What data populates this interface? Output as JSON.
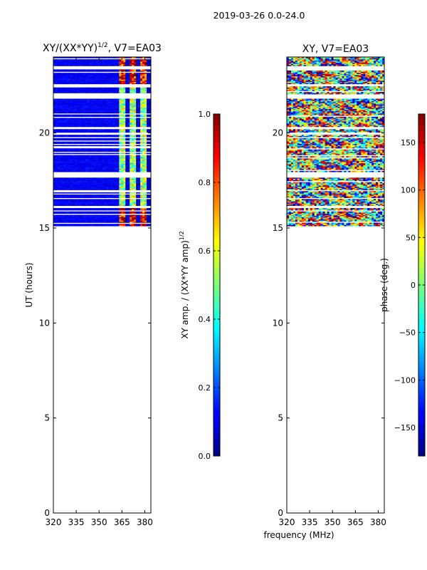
{
  "page": {
    "suptitle": "2019-03-26 0.0-24.0",
    "shared_xlabel": "frequency (MHz)"
  },
  "colors": {
    "axis": "#000000",
    "background": "#ffffff"
  },
  "chart_data": [
    {
      "type": "heatmap",
      "title_main": "XY/(XX*YY)",
      "title_sup": "1/2",
      "title_tail": ", V7=EA03",
      "xlabel": "",
      "ylabel": "UT (hours)",
      "xlim": [
        320,
        384
      ],
      "ylim": [
        0,
        24
      ],
      "x_ticks": [
        320,
        335,
        350,
        365,
        380
      ],
      "y_ticks": [
        0,
        5,
        10,
        15,
        20
      ],
      "data_extent_hours": [
        15.1,
        24.0
      ],
      "colormap": "jet",
      "colorbar": {
        "label_main": "XY amp. / (XX*YY amp)",
        "label_sup": "1/2",
        "vmin": 0.0,
        "vmax": 1.0,
        "ticks": [
          "0.0",
          "0.2",
          "0.4",
          "0.6",
          "0.8",
          "1.0"
        ],
        "tick_values": [
          0.0,
          0.2,
          0.4,
          0.6,
          0.8,
          1.0
        ]
      }
    },
    {
      "type": "heatmap",
      "title": "XY, V7=EA03",
      "xlabel": "",
      "ylabel": "",
      "xlim": [
        320,
        384
      ],
      "ylim": [
        0,
        24
      ],
      "x_ticks": [
        320,
        335,
        350,
        365,
        380
      ],
      "y_ticks": [
        0,
        5,
        10,
        15,
        20
      ],
      "data_extent_hours": [
        15.1,
        24.0
      ],
      "colormap": "jet",
      "colorbar": {
        "label": "phase (deg.)",
        "vmin": -180,
        "vmax": 180,
        "ticks": [
          "−150",
          "−100",
          "−50",
          "0",
          "50",
          "100",
          "150"
        ],
        "tick_values": [
          -150,
          -100,
          -50,
          0,
          50,
          100,
          150
        ]
      }
    }
  ]
}
